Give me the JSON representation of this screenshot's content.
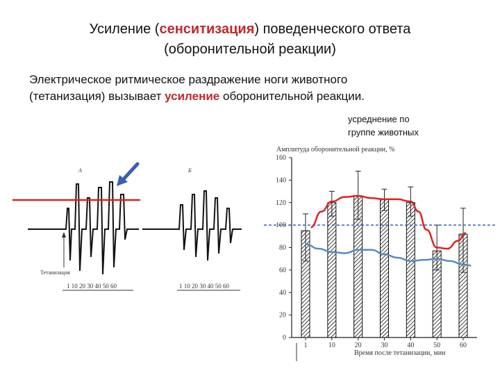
{
  "slide": {
    "title": {
      "part1": "Усиление (",
      "highlight": "сенситизация",
      "part2": ") поведенческого ответа",
      "line2": "(оборонительной реакции)"
    },
    "body": {
      "line1": "Электрическое ритмическое раздражение ноги животного",
      "line2_prefix": "(тетанизация) вызывает ",
      "line2_highlight": "усиление",
      "line2_suffix": " оборонительной реакции."
    },
    "note": {
      "line1": "усреднение по",
      "line2": "группе животных"
    },
    "accent_color": "#c0282e"
  },
  "trace_figure": {
    "panel_a_label": "А",
    "panel_b_label": "Б",
    "stim_label": "Тетанизация",
    "time_ticks_a": "1 10 20 30 40 50 60",
    "time_ticks_b": "1 10 20 30 40 50 60",
    "arrow_color": "#3a5fb0",
    "threshold_line_color": "#e02020"
  },
  "chart_data": {
    "type": "bar",
    "title": "Амплитуда оборонительной реакции, %",
    "xlabel": "Время после тетанизации, мин",
    "ylabel": "",
    "categories": [
      "1",
      "10",
      "20",
      "30",
      "40",
      "50",
      "60"
    ],
    "yticks": [
      "0",
      "20",
      "40",
      "60",
      "80",
      "100",
      "120",
      "140",
      "160"
    ],
    "ylim": [
      0,
      160
    ],
    "bar_values": [
      95,
      120,
      126,
      123,
      120,
      77,
      92
    ],
    "error_high": [
      110,
      130,
      148,
      132,
      134,
      100,
      115
    ],
    "error_low": [
      68,
      108,
      105,
      113,
      108,
      60,
      58
    ],
    "series": [
      {
        "name": "",
        "color": "#e02020",
        "x": [
          0.2,
          0.6,
          1.0,
          1.5,
          2.0,
          2.5,
          3.0,
          3.5,
          4.0,
          4.3,
          4.6,
          5.0,
          5.4,
          5.8,
          6.1
        ],
        "values": [
          98,
          112,
          121,
          125,
          126,
          124,
          123,
          123,
          121,
          112,
          96,
          80,
          79,
          86,
          93
        ]
      },
      {
        "name": "",
        "color": "#5a8abf",
        "x": [
          0.0,
          0.5,
          1.0,
          1.5,
          2.0,
          2.5,
          3.0,
          3.5,
          4.0,
          4.5,
          5.0,
          5.5,
          6.0,
          6.3
        ],
        "values": [
          83,
          79,
          76,
          75,
          78,
          78,
          74,
          71,
          68,
          69,
          70,
          68,
          65,
          64
        ]
      }
    ],
    "reference_line": {
      "value": 100,
      "color": "#3a5fb0",
      "style": "dashed"
    },
    "grid": false
  }
}
